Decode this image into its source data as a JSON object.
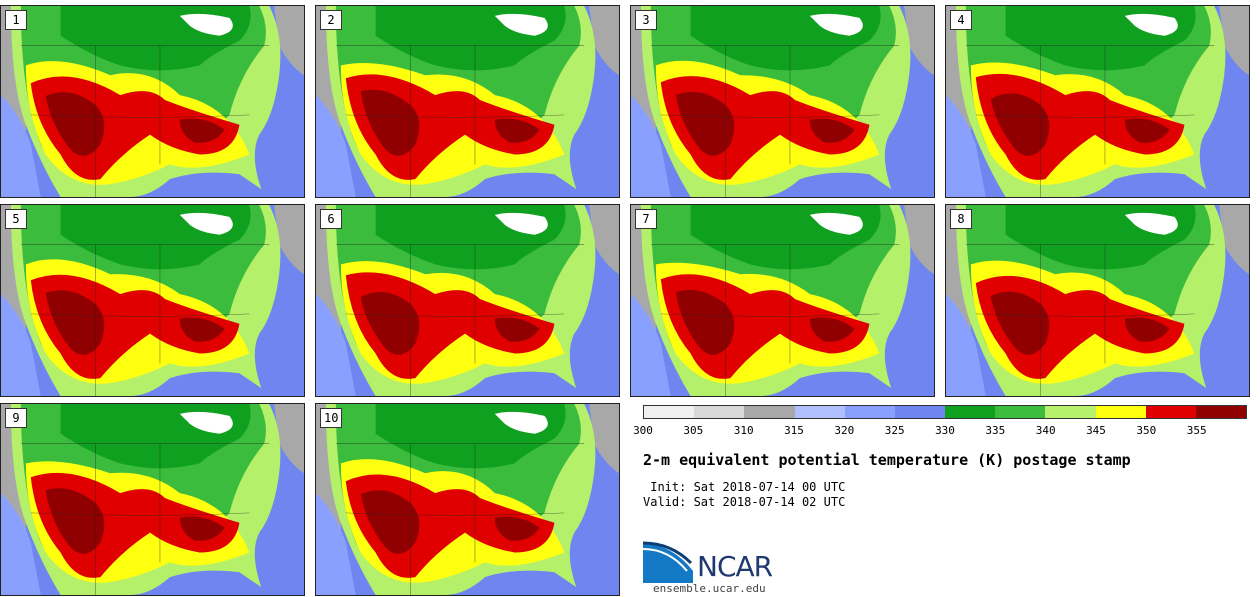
{
  "stamps": [
    {
      "label": "1"
    },
    {
      "label": "2"
    },
    {
      "label": "3"
    },
    {
      "label": "4"
    },
    {
      "label": "5"
    },
    {
      "label": "6"
    },
    {
      "label": "7"
    },
    {
      "label": "8"
    },
    {
      "label": "9"
    },
    {
      "label": "10"
    }
  ],
  "colorbar": {
    "colors": [
      "#f0f0f0",
      "#d8d8d8",
      "#a8a8a8",
      "#b0c0ff",
      "#8aa0ff",
      "#6f86f0",
      "#10a020",
      "#3cbc3c",
      "#b4f06a",
      "#ffff10",
      "#e00000",
      "#900000"
    ],
    "ticks": [
      "300",
      "305",
      "310",
      "315",
      "320",
      "325",
      "330",
      "335",
      "340",
      "345",
      "350",
      "355"
    ]
  },
  "title": "2-m equivalent potential temperature (K) postage stamp",
  "init": " Init: Sat 2018-07-14 00 UTC",
  "valid": "Valid: Sat 2018-07-14 02 UTC",
  "logo": {
    "text": "NCAR",
    "url": "ensemble.ucar.edu"
  },
  "map_colors": {
    "ocean": "#6f86f0",
    "ocean_light": "#8aa0ff",
    "land_gray": "#a8a8a8",
    "green_dark": "#10a020",
    "green": "#3cbc3c",
    "green_light": "#b4f06a",
    "yellow": "#ffff10",
    "red": "#e00000",
    "darkred": "#900000",
    "lake": "#ffffff"
  }
}
